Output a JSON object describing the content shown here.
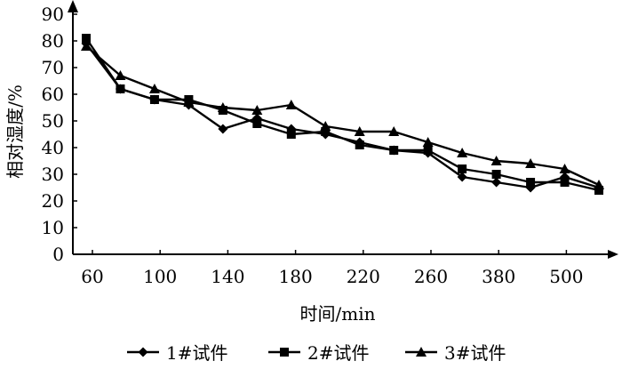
{
  "chart_data": {
    "type": "line",
    "xlabel": "时间/min",
    "ylabel": "相对湿度/%",
    "ylim": [
      0,
      90
    ],
    "y_ticks": [
      0,
      10,
      20,
      30,
      40,
      50,
      60,
      70,
      80,
      90
    ],
    "x_tick_labels": [
      "60",
      "100",
      "140",
      "180",
      "220",
      "260",
      "380",
      "500"
    ],
    "grid": false,
    "legend_position": "bottom",
    "series": [
      {
        "name": "1#试件",
        "marker": "diamond",
        "values": [
          79,
          62,
          58,
          56,
          47,
          51,
          47,
          45,
          42,
          39,
          38,
          29,
          27,
          25,
          29,
          25
        ]
      },
      {
        "name": "2#试件",
        "marker": "square",
        "values": [
          81,
          62,
          58,
          58,
          54,
          49,
          45,
          46,
          41,
          39,
          39,
          32,
          30,
          27,
          27,
          24
        ]
      },
      {
        "name": "3#试件",
        "marker": "triangle",
        "values": [
          78,
          67,
          62,
          57,
          55,
          54,
          56,
          48,
          46,
          46,
          42,
          38,
          35,
          34,
          32,
          26
        ]
      }
    ]
  }
}
